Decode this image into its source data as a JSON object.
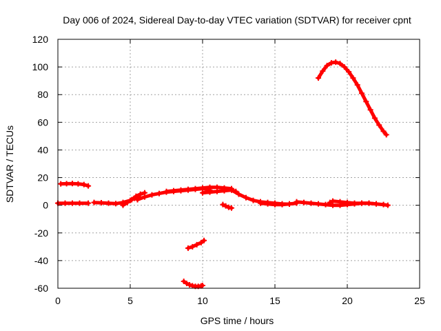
{
  "chart_data": {
    "type": "scatter",
    "title": "Day 006 of 2024, Sidereal Day-to-day VTEC variation (SDTVAR) for receiver cpnt",
    "xlabel": "GPS time / hours",
    "ylabel": "SDTVAR / TECUs",
    "xlim": [
      0,
      25
    ],
    "ylim": [
      -60,
      120
    ],
    "xticks": [
      0,
      5,
      10,
      15,
      20,
      25
    ],
    "yticks": [
      -60,
      -40,
      -20,
      0,
      20,
      40,
      60,
      80,
      100,
      120
    ],
    "grid": true,
    "legend": "none",
    "marker": "+",
    "color": "#ff0000",
    "series": [
      {
        "name": "arc-1",
        "x": [
          0.0,
          0.5,
          1.0,
          1.5,
          2.1
        ],
        "y": [
          1.5,
          1.5,
          1.5,
          1.5,
          1.5
        ]
      },
      {
        "name": "arc-2",
        "x": [
          0.2,
          0.6,
          1.0,
          1.4,
          1.8,
          2.1
        ],
        "y": [
          15.5,
          15.6,
          15.7,
          15.5,
          15.0,
          14.0
        ]
      },
      {
        "name": "arc-3",
        "x": [
          2.5,
          3.0,
          3.5,
          4.0,
          4.5,
          5.0,
          5.3,
          5.6
        ],
        "y": [
          2.0,
          1.8,
          1.5,
          1.2,
          2.0,
          3.5,
          5.0,
          6.0
        ]
      },
      {
        "name": "arc-4",
        "x": [
          4.5,
          4.8,
          5.1,
          5.4,
          5.7,
          6.0
        ],
        "y": [
          0.0,
          2.0,
          4.0,
          6.5,
          8.0,
          9.0
        ]
      },
      {
        "name": "arc-5",
        "x": [
          5.5,
          6.0,
          6.5,
          7.0,
          7.5,
          8.0,
          8.5,
          9.0,
          9.5,
          10.0,
          10.5
        ],
        "y": [
          4.0,
          6.0,
          7.5,
          8.5,
          9.5,
          10.0,
          10.5,
          11.0,
          11.5,
          12.0,
          11.0
        ]
      },
      {
        "name": "arc-6",
        "x": [
          7.5,
          8.0,
          8.5,
          9.0,
          9.5,
          10.0,
          10.5,
          11.0,
          11.5,
          12.0
        ],
        "y": [
          10.0,
          10.5,
          11.0,
          11.5,
          12.0,
          12.5,
          13.0,
          13.0,
          12.5,
          12.0
        ]
      },
      {
        "name": "arc-7",
        "x": [
          10.0,
          10.5,
          11.0,
          11.5,
          12.0,
          12.3
        ],
        "y": [
          9.0,
          9.5,
          10.0,
          10.5,
          11.0,
          10.0
        ]
      },
      {
        "name": "arc-8",
        "x": [
          11.4,
          11.6,
          11.8,
          12.0
        ],
        "y": [
          0.5,
          -0.5,
          -1.5,
          -2.0
        ]
      },
      {
        "name": "arc-9",
        "x": [
          12.0,
          12.5,
          13.0,
          13.5,
          14.0,
          14.5,
          15.0,
          15.5,
          16.0
        ],
        "y": [
          11.0,
          8.0,
          5.5,
          3.5,
          2.5,
          2.0,
          1.5,
          1.0,
          0.8
        ]
      },
      {
        "name": "arc-10",
        "x": [
          14.0,
          14.5,
          15.0,
          15.5,
          16.0,
          16.5
        ],
        "y": [
          1.5,
          1.0,
          0.5,
          0.5,
          1.0,
          1.5
        ]
      },
      {
        "name": "arc-11",
        "x": [
          16.5,
          17.0,
          17.5,
          18.0,
          18.5,
          19.0,
          19.5,
          20.0,
          20.5,
          21.0,
          21.5,
          22.0,
          22.5,
          22.8
        ],
        "y": [
          2.5,
          2.0,
          1.5,
          1.0,
          0.5,
          0.0,
          0.0,
          0.5,
          1.0,
          1.5,
          1.5,
          1.0,
          0.5,
          0.0
        ]
      },
      {
        "name": "arc-12",
        "x": [
          18.8,
          19.0,
          19.5,
          20.0,
          20.5,
          21.0,
          21.5,
          22.0
        ],
        "y": [
          2.0,
          3.0,
          2.5,
          2.0,
          1.5,
          1.5,
          1.5,
          1.0
        ]
      },
      {
        "name": "arc-13",
        "x": [
          9.0,
          9.3,
          9.6,
          9.9,
          10.1
        ],
        "y": [
          -31.0,
          -30.0,
          -28.5,
          -27.0,
          -25.5
        ]
      },
      {
        "name": "arc-14",
        "x": [
          8.7,
          8.9,
          9.1,
          9.3,
          9.5,
          9.7,
          9.9,
          10.0
        ],
        "y": [
          -55.0,
          -56.5,
          -57.5,
          -58.2,
          -58.6,
          -58.6,
          -58.3,
          -58.0
        ]
      },
      {
        "name": "arc-15",
        "x": [
          18.0,
          18.3,
          18.6,
          18.9,
          19.2,
          19.5,
          19.8,
          20.1,
          20.4,
          20.7,
          21.0,
          21.3,
          21.6,
          21.9,
          22.2,
          22.5,
          22.7
        ],
        "y": [
          92.0,
          97.0,
          101.0,
          103.0,
          103.5,
          102.5,
          100.0,
          96.5,
          92.0,
          87.0,
          81.0,
          75.0,
          69.0,
          63.0,
          58.0,
          53.5,
          51.0
        ]
      }
    ]
  }
}
